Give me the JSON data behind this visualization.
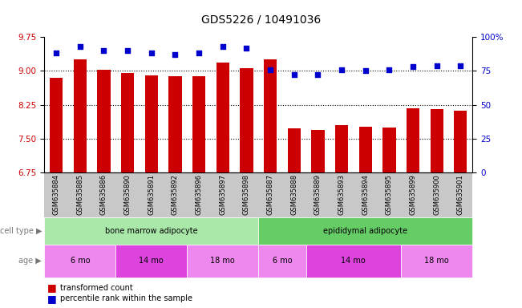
{
  "title": "GDS5226 / 10491036",
  "samples": [
    "GSM635884",
    "GSM635885",
    "GSM635886",
    "GSM635890",
    "GSM635891",
    "GSM635892",
    "GSM635896",
    "GSM635897",
    "GSM635898",
    "GSM635887",
    "GSM635888",
    "GSM635889",
    "GSM635893",
    "GSM635894",
    "GSM635895",
    "GSM635899",
    "GSM635900",
    "GSM635901"
  ],
  "bar_values": [
    8.85,
    9.25,
    9.02,
    8.96,
    8.9,
    8.88,
    8.89,
    9.18,
    9.06,
    9.25,
    7.72,
    7.69,
    7.8,
    7.76,
    7.74,
    8.17,
    8.15,
    8.12
  ],
  "dot_values": [
    88,
    93,
    90,
    90,
    88,
    87,
    88,
    93,
    92,
    76,
    72,
    72,
    76,
    75,
    76,
    78,
    79,
    79
  ],
  "ylim_left": [
    6.75,
    9.75
  ],
  "ylim_right": [
    0,
    100
  ],
  "yticks_left": [
    6.75,
    7.5,
    8.25,
    9.0,
    9.75
  ],
  "yticks_right": [
    0,
    25,
    50,
    75,
    100
  ],
  "bar_color": "#cc0000",
  "dot_color": "#0000cc",
  "cell_type_groups": [
    {
      "label": "bone marrow adipocyte",
      "start": 0,
      "end": 9,
      "color": "#aae8aa"
    },
    {
      "label": "epididymal adipocyte",
      "start": 9,
      "end": 18,
      "color": "#66cc66"
    }
  ],
  "age_groups": [
    {
      "label": "6 mo",
      "start": 0,
      "end": 3,
      "color": "#ee88ee"
    },
    {
      "label": "14 mo",
      "start": 3,
      "end": 6,
      "color": "#dd44dd"
    },
    {
      "label": "18 mo",
      "start": 6,
      "end": 9,
      "color": "#ee88ee"
    },
    {
      "label": "6 mo",
      "start": 9,
      "end": 11,
      "color": "#ee88ee"
    },
    {
      "label": "14 mo",
      "start": 11,
      "end": 15,
      "color": "#dd44dd"
    },
    {
      "label": "18 mo",
      "start": 15,
      "end": 18,
      "color": "#ee88ee"
    }
  ],
  "cell_type_label": "cell type",
  "age_label": "age",
  "legend_bar_label": "transformed count",
  "legend_dot_label": "percentile rank within the sample",
  "bar_width": 0.55
}
